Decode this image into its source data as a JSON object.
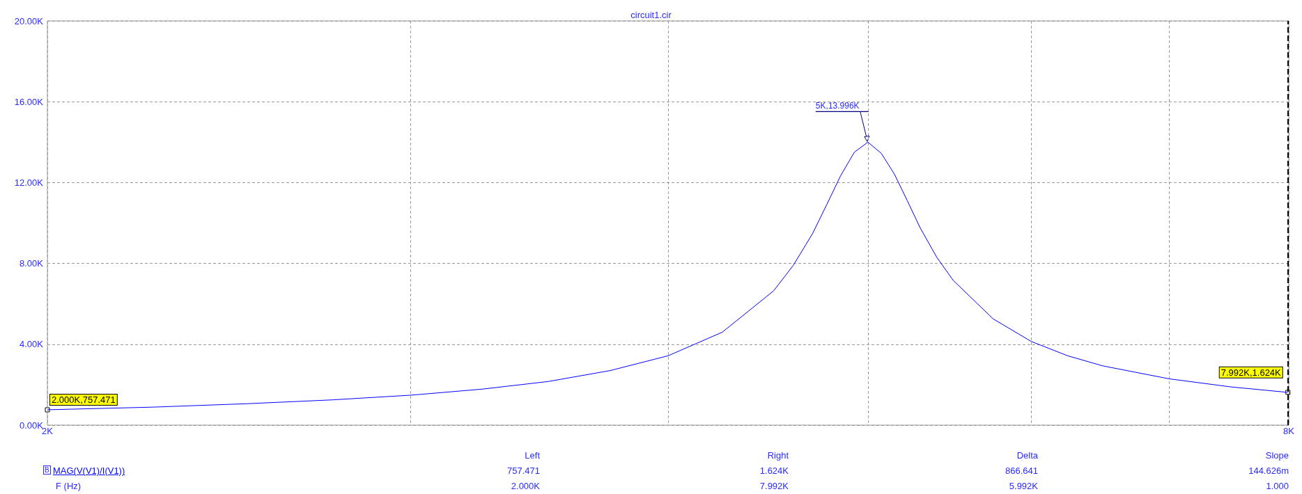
{
  "chart_data": {
    "type": "line",
    "title": "circuit1.cir",
    "log": "x",
    "x": [
      2000,
      2250,
      2500,
      2750,
      3000,
      3250,
      3500,
      3750,
      4000,
      4250,
      4500,
      4600,
      4700,
      4775,
      4850,
      4925,
      5000,
      5075,
      5150,
      5225,
      5300,
      5400,
      5500,
      5750,
      6000,
      6250,
      6500,
      7000,
      7500,
      7992
    ],
    "series": [
      {
        "name": "MAG(V(V1)/I(V1))",
        "color": "#0000ff",
        "values": [
          760,
          890,
          1060,
          1250,
          1480,
          1780,
          2160,
          2700,
          3430,
          4600,
          6640,
          7900,
          9470,
          10900,
          12340,
          13500,
          14000,
          13450,
          12420,
          11100,
          9770,
          8300,
          7160,
          5260,
          4140,
          3430,
          2930,
          2290,
          1890,
          1620
        ]
      }
    ],
    "xlim": [
      2000,
      8000
    ],
    "xticks": [
      {
        "value": 2000,
        "label": "2K"
      },
      {
        "value": 3000,
        "label": null
      },
      {
        "value": 4000,
        "label": null
      },
      {
        "value": 5000,
        "label": null
      },
      {
        "value": 6000,
        "label": null
      },
      {
        "value": 7000,
        "label": null
      },
      {
        "value": 8000,
        "label": "8K"
      }
    ],
    "ylim": [
      0,
      20000
    ],
    "yticks": [
      {
        "value": 0,
        "label": "0.00K"
      },
      {
        "value": 4000,
        "label": "4.00K"
      },
      {
        "value": 8000,
        "label": "8.00K"
      },
      {
        "value": 12000,
        "label": "12.00K"
      },
      {
        "value": 16000,
        "label": "16.00K"
      },
      {
        "value": 20000,
        "label": "20.00K"
      }
    ],
    "grid": true,
    "ref_lines": [
      {
        "axis": "x",
        "value": 7992,
        "color": "#000000",
        "line_style": "dashed"
      }
    ],
    "annotations": [
      {
        "text": "5K,13.996K",
        "x": 5000,
        "y": 13996
      },
      {
        "text": "2.000K,757.471",
        "x": 2000,
        "y": 757.471
      },
      {
        "text": "7.992K,1.624K",
        "x": 7992,
        "y": 1624
      },
      "B",
      "Left",
      "Right",
      "Delta",
      "Slope",
      "757.471",
      "1.624K",
      "866.641",
      "144.626m",
      "F (Hz)",
      "2.000K",
      "7.992K",
      "5.992K",
      "1.000"
    ]
  }
}
